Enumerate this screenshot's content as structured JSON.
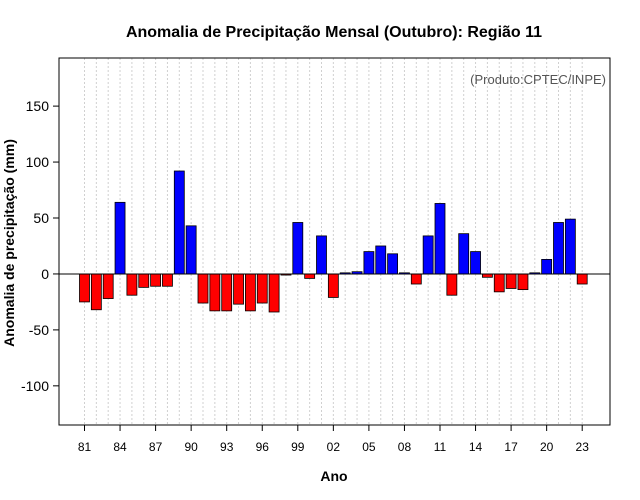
{
  "chart_data": {
    "type": "bar",
    "title": "Anomalia de Precipitação Mensal (Outubro): Região 11",
    "xlabel": "Ano",
    "ylabel": "Anomalia de precipitação (mm)",
    "credit": "(Produto:CPTEC/INPE)",
    "ylim": [
      -135,
      193
    ],
    "yticks": [
      -100,
      -50,
      0,
      50,
      100,
      150
    ],
    "x": [
      1981,
      1982,
      1983,
      1984,
      1985,
      1986,
      1987,
      1988,
      1989,
      1990,
      1991,
      1992,
      1993,
      1994,
      1995,
      1996,
      1997,
      1998,
      1999,
      2000,
      2001,
      2002,
      2003,
      2004,
      2005,
      2006,
      2007,
      2008,
      2009,
      2010,
      2011,
      2012,
      2013,
      2014,
      2015,
      2016,
      2017,
      2018,
      2019,
      2020,
      2021,
      2022,
      2023
    ],
    "values": [
      -25,
      -32,
      -22,
      64,
      -19,
      -12,
      -11,
      -11,
      92,
      43,
      -26,
      -33,
      -33,
      -27,
      -33,
      -26,
      -34,
      -1,
      46,
      -4,
      34,
      -21,
      1,
      2,
      20,
      25,
      18,
      1,
      -9,
      34,
      63,
      -19,
      36,
      20,
      -3,
      -16,
      -13,
      -14,
      1,
      13,
      46,
      49,
      -9
    ],
    "xtick_labels": [
      "81",
      "84",
      "87",
      "90",
      "93",
      "96",
      "99",
      "02",
      "05",
      "08",
      "11",
      "14",
      "17",
      "20",
      "23"
    ],
    "positive_color": "#0000ff",
    "negative_color": "#ff0000",
    "grid": true
  }
}
